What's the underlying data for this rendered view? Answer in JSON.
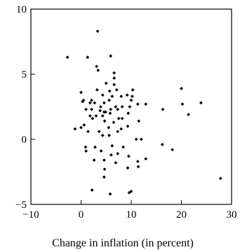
{
  "chart_data": {
    "type": "scatter",
    "title": "",
    "xlabel": "Change in inflation (in percent)",
    "ylabel": "",
    "xlim": [
      -10,
      30
    ],
    "ylim": [
      -5,
      10
    ],
    "xticks": [
      -10,
      0,
      10,
      20,
      30
    ],
    "yticks": [
      -5,
      0,
      5,
      10
    ],
    "xtick_labels": [
      "−10",
      "0",
      "10",
      "20",
      "30"
    ],
    "ytick_labels": [
      "−5",
      "0",
      "5",
      "10"
    ],
    "grid": false,
    "marker": "diamond",
    "marker_color": "#000000",
    "points": [
      [
        -2.7,
        6.3
      ],
      [
        1.3,
        6.3
      ],
      [
        5.9,
        6.4
      ],
      [
        3.3,
        8.3
      ],
      [
        3.1,
        5.6
      ],
      [
        3.4,
        5.3
      ],
      [
        6.6,
        5.1
      ],
      [
        6.6,
        4.7
      ],
      [
        5.0,
        4.3
      ],
      [
        6.6,
        4.2
      ],
      [
        7.1,
        3.8
      ],
      [
        5.7,
        3.7
      ],
      [
        3.2,
        3.8
      ],
      [
        10.3,
        3.8
      ],
      [
        0.0,
        3.6
      ],
      [
        4.3,
        3.4
      ],
      [
        9.2,
        3.4
      ],
      [
        10.2,
        3.3
      ],
      [
        6.2,
        3.3
      ],
      [
        8.0,
        3.3
      ],
      [
        2.1,
        3.0
      ],
      [
        5.6,
        3.0
      ],
      [
        10.0,
        3.0
      ],
      [
        0.3,
        2.9
      ],
      [
        1.8,
        2.8
      ],
      [
        2.7,
        2.8
      ],
      [
        4.6,
        2.8
      ],
      [
        11.3,
        2.7
      ],
      [
        12.9,
        2.7
      ],
      [
        3.9,
        2.5
      ],
      [
        6.9,
        2.5
      ],
      [
        8.2,
        2.5
      ],
      [
        9.7,
        2.5
      ],
      [
        1.0,
        2.3
      ],
      [
        2.1,
        2.3
      ],
      [
        5.9,
        2.3
      ],
      [
        7.3,
        2.3
      ],
      [
        16.3,
        2.3
      ],
      [
        3.8,
        2.2
      ],
      [
        4.6,
        2.1
      ],
      [
        4.9,
        2.1
      ],
      [
        5.8,
        2.0
      ],
      [
        9.4,
        2.0
      ],
      [
        4.3,
        1.8
      ],
      [
        1.8,
        1.8
      ],
      [
        3.0,
        1.8
      ],
      [
        2.3,
        1.6
      ],
      [
        7.5,
        1.6
      ],
      [
        8.2,
        1.6
      ],
      [
        4.7,
        1.4
      ],
      [
        11.5,
        1.4
      ],
      [
        6.5,
        1.3
      ],
      [
        0.6,
        1.1
      ],
      [
        9.3,
        1.0
      ],
      [
        5.5,
        0.9
      ],
      [
        8.0,
        0.8
      ],
      [
        -1.2,
        0.8
      ],
      [
        0.0,
        0.9
      ],
      [
        7.3,
        0.6
      ],
      [
        1.4,
        0.6
      ],
      [
        3.6,
        0.6
      ],
      [
        4.3,
        0.3
      ],
      [
        5.6,
        0.3
      ],
      [
        11.0,
        0.0
      ],
      [
        12.0,
        0.0
      ],
      [
        16.2,
        -0.4
      ],
      [
        6.2,
        -0.5
      ],
      [
        0.9,
        -0.6
      ],
      [
        2.8,
        -0.6
      ],
      [
        8.4,
        -0.6
      ],
      [
        18.2,
        -0.8
      ],
      [
        1.0,
        -0.9
      ],
      [
        4.0,
        -0.9
      ],
      [
        7.3,
        -1.1
      ],
      [
        6.0,
        -1.2
      ],
      [
        9.5,
        -1.3
      ],
      [
        12.9,
        -1.5
      ],
      [
        2.6,
        -1.6
      ],
      [
        4.6,
        -1.6
      ],
      [
        11.3,
        -1.7
      ],
      [
        6.9,
        -1.8
      ],
      [
        9.3,
        -2.2
      ],
      [
        4.7,
        -2.3
      ],
      [
        11.4,
        -2.1
      ],
      [
        4.6,
        -2.9
      ],
      [
        2.2,
        -3.9
      ],
      [
        5.8,
        -4.2
      ],
      [
        9.6,
        -4.1
      ],
      [
        10.0,
        -4.0
      ],
      [
        27.8,
        -3.0
      ],
      [
        20.0,
        3.9
      ],
      [
        20.2,
        2.7
      ],
      [
        21.4,
        1.9
      ],
      [
        23.9,
        2.8
      ],
      [
        0.5,
        3.0
      ]
    ]
  }
}
